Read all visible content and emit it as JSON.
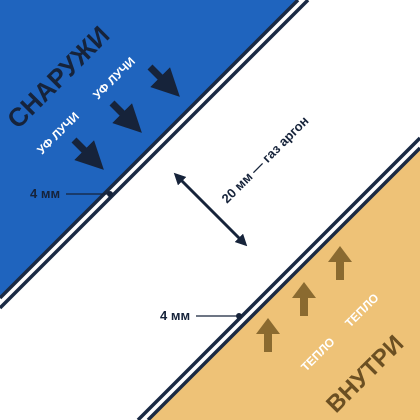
{
  "outside_label": "СНАРУЖИ",
  "inside_label": "ВНУТРИ",
  "uv_labels": [
    "УФ ЛУЧИ",
    "УФ ЛУЧИ"
  ],
  "heat_labels": [
    "ТЕПЛО",
    "ТЕПЛО"
  ],
  "gap_label": "20 мм — газ аргон",
  "glass_label_top": "4 мм",
  "glass_label_bottom": "4 мм",
  "colors": {
    "outside": "#1f64be",
    "inside": "#eec277",
    "glass": "#1a2a44",
    "uv_arrow": "#16233a",
    "heat_arrow": "#8a6a30",
    "inside_text": "#6b4f22",
    "background": "#ffffff"
  }
}
